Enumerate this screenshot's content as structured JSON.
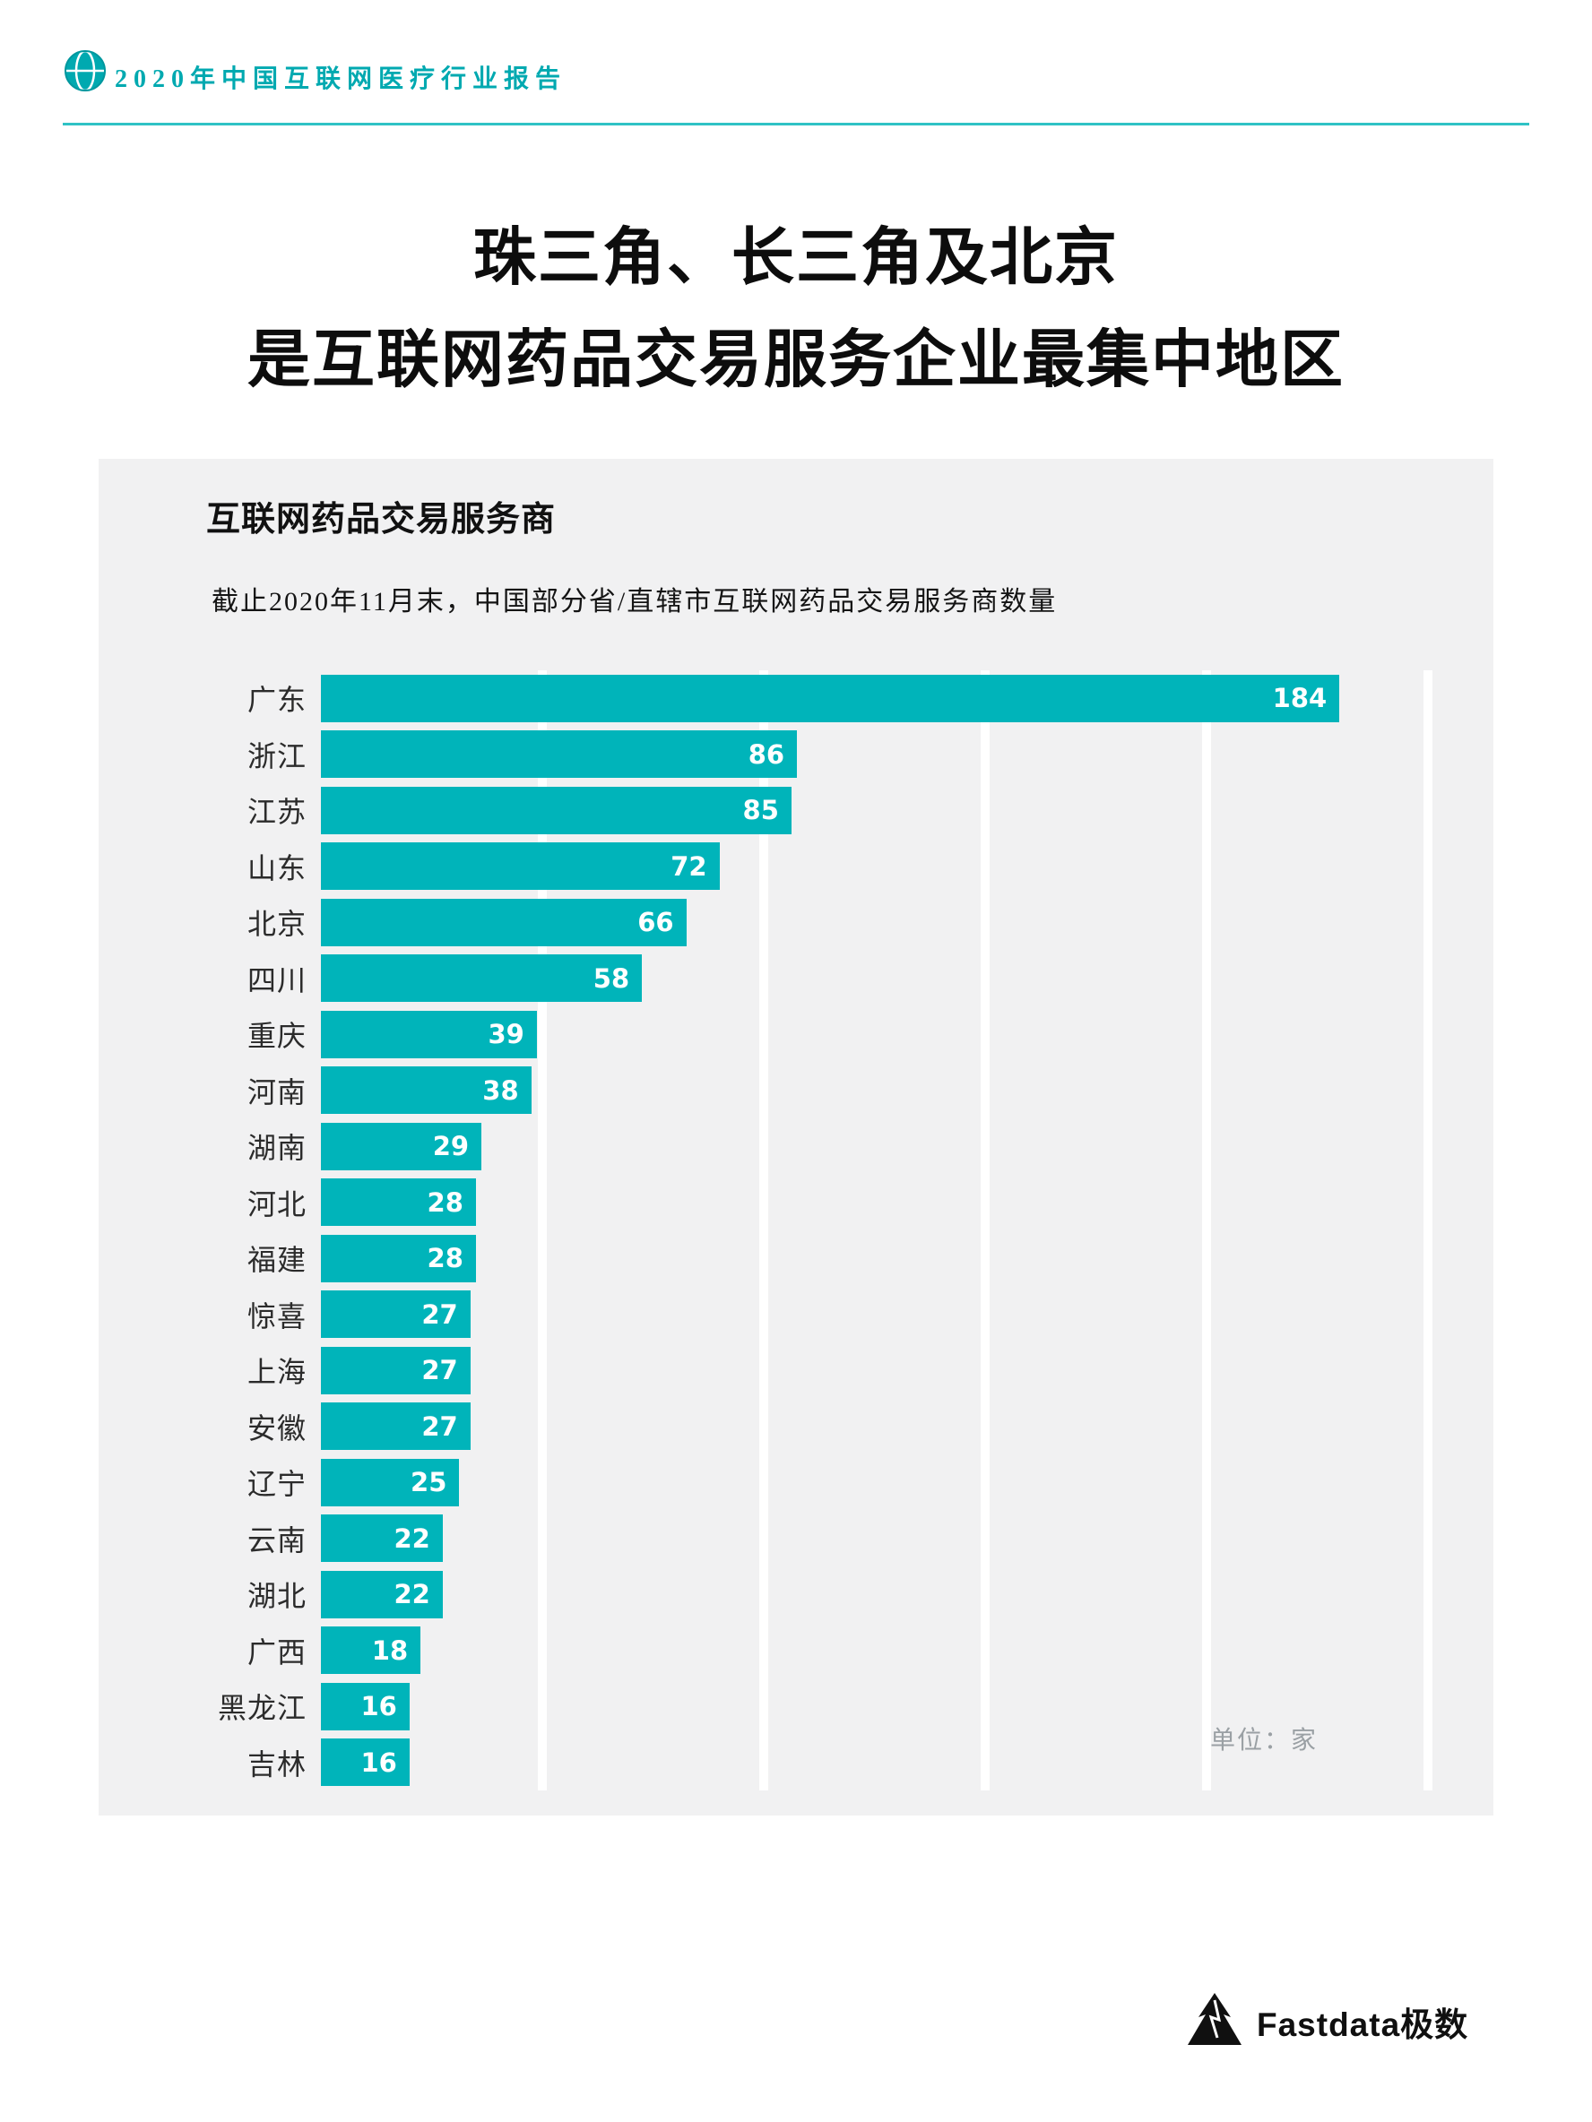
{
  "header": {
    "report_title": "2020年中国互联网医疗行业报告"
  },
  "title": {
    "line1": "珠三角、长三角及北京",
    "line2": "是互联网药品交易服务企业最集中地区"
  },
  "card": {
    "heading": "互联网药品交易服务商",
    "subtitle": "截止2020年11月末，中国部分省/直辖市互联网药品交易服务商数量",
    "unit_label": "单位：家"
  },
  "footer": {
    "brand": "Fastdata极数"
  },
  "colors": {
    "teal": "#00b4ba",
    "card_bg": "#f1f1f2",
    "gridline": "#ffffff",
    "title_text": "#0d0d0d",
    "unit_text": "#9aa0a4"
  },
  "chart_data": {
    "type": "bar",
    "orientation": "horizontal",
    "title": "截止2020年11月末，中国部分省/直辖市互联网药品交易服务商数量",
    "unit": "家",
    "categories": [
      "广东",
      "浙江",
      "江苏",
      "山东",
      "北京",
      "四川",
      "重庆",
      "河南",
      "湖南",
      "河北",
      "福建",
      "惊喜",
      "上海",
      "安徽",
      "辽宁",
      "云南",
      "湖北",
      "广西",
      "黑龙江",
      "吉林"
    ],
    "values": [
      184,
      86,
      85,
      72,
      66,
      58,
      39,
      38,
      29,
      28,
      28,
      27,
      27,
      27,
      25,
      22,
      22,
      18,
      16,
      16
    ],
    "xlim": [
      0,
      200
    ],
    "gridlines": [
      40,
      80,
      120,
      160,
      200
    ],
    "grid": true,
    "legend": false,
    "bar_color": "#00b4ba",
    "value_label_color": "#ffffff"
  }
}
